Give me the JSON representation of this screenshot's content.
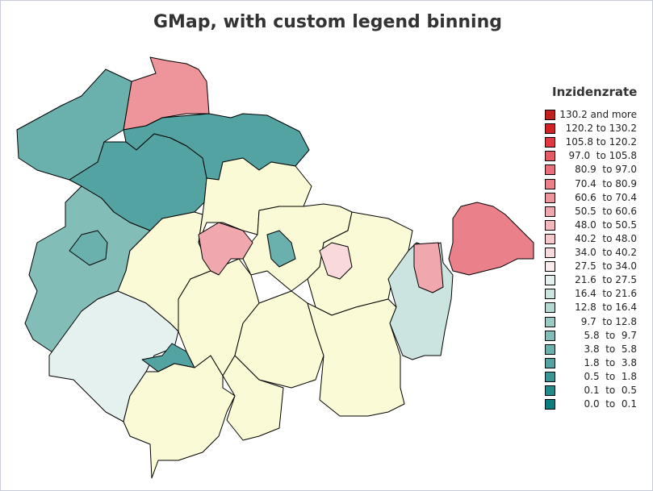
{
  "chart_data": {
    "type": "choropleth map",
    "title": "GMap, with custom legend binning",
    "legend": {
      "title": "Inzidenzrate",
      "placement": "right",
      "bins": [
        {
          "label": "130.2 and more",
          "color": "#c0201f"
        },
        {
          "label": "120.2 to 130.2",
          "color": "#d12326"
        },
        {
          "label": "105.8 to 120.2",
          "color": "#e03a40"
        },
        {
          "label": "97.0  to 105.8",
          "color": "#e65a63"
        },
        {
          "label": "80.9  to 97.0",
          "color": "#e8707a"
        },
        {
          "label": "70.4  to 80.9",
          "color": "#ea8089"
        },
        {
          "label": "60.6  to 70.4",
          "color": "#ee959c"
        },
        {
          "label": "50.5  to 60.6",
          "color": "#f0a7ad"
        },
        {
          "label": "48.0  to 50.5",
          "color": "#f3b7bc"
        },
        {
          "label": "40.2  to 48.0",
          "color": "#f6c8cc"
        },
        {
          "label": "34.0  to 40.2",
          "color": "#f9d9dc"
        },
        {
          "label": "27.5  to 34.0",
          "color": "#fcebec"
        },
        {
          "label": "21.6  to 27.5",
          "color": "#e5f1ee"
        },
        {
          "label": "16.4  to 21.6",
          "color": "#cce4df"
        },
        {
          "label": "12.8  to 16.4",
          "color": "#b3d7d1"
        },
        {
          "label": "9.7  to 12.8",
          "color": "#9acac4"
        },
        {
          "label": "5.8  to  9.7",
          "color": "#82bdb8"
        },
        {
          "label": "3.8  to  5.8",
          "color": "#6ab0ac"
        },
        {
          "label": "1.8  to  3.8",
          "color": "#52a3a1"
        },
        {
          "label": "0.5  to  1.8",
          "color": "#3a9694"
        },
        {
          "label": "0.1  to  0.5",
          "color": "#228a89"
        },
        {
          "label": "0.0  to  0.1",
          "color": "#0b7d7c"
        }
      ]
    },
    "no_data_color": "#fafad6"
  }
}
